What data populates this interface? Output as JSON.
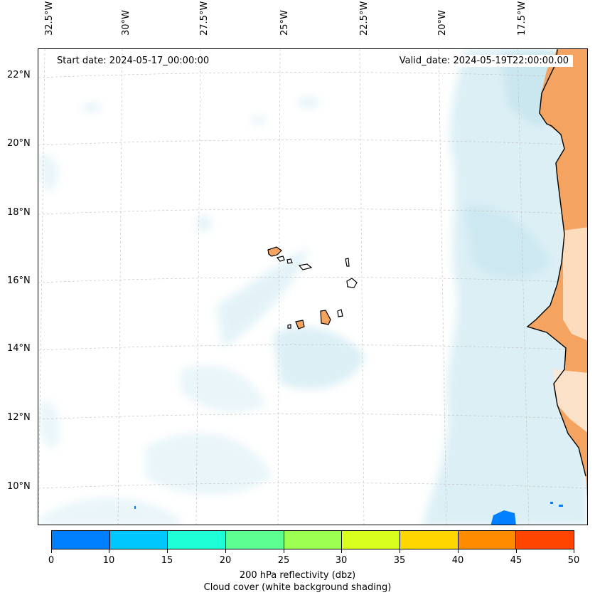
{
  "map": {
    "start_date": "Start date: 2024-05-17_00:00:00",
    "valid_date": "Valid_date: 2024-05-19T22:00:00.00",
    "lon_labels": [
      "32.5°W",
      "30°W",
      "27.5°W",
      "25°W",
      "22.5°W",
      "20°W",
      "17.5°W"
    ],
    "lat_labels": [
      "22°N",
      "20°N",
      "18°N",
      "16°N",
      "14°N",
      "12°N",
      "10°N"
    ],
    "land_color": "#f4a460",
    "coast_color": "#000000",
    "cloud_color": "#add8e6"
  },
  "colorbar": {
    "ticks": [
      "0",
      "10",
      "15",
      "20",
      "25",
      "30",
      "35",
      "40",
      "45",
      "50"
    ],
    "colors": [
      "#0080ff",
      "#00c8ff",
      "#1effd8",
      "#5cff90",
      "#9aff50",
      "#d8ff1e",
      "#ffd700",
      "#ff8c00",
      "#ff4500"
    ],
    "title": "200 hPa reflectivity (dbz)",
    "subtitle": "Cloud cover (white background shading)"
  }
}
